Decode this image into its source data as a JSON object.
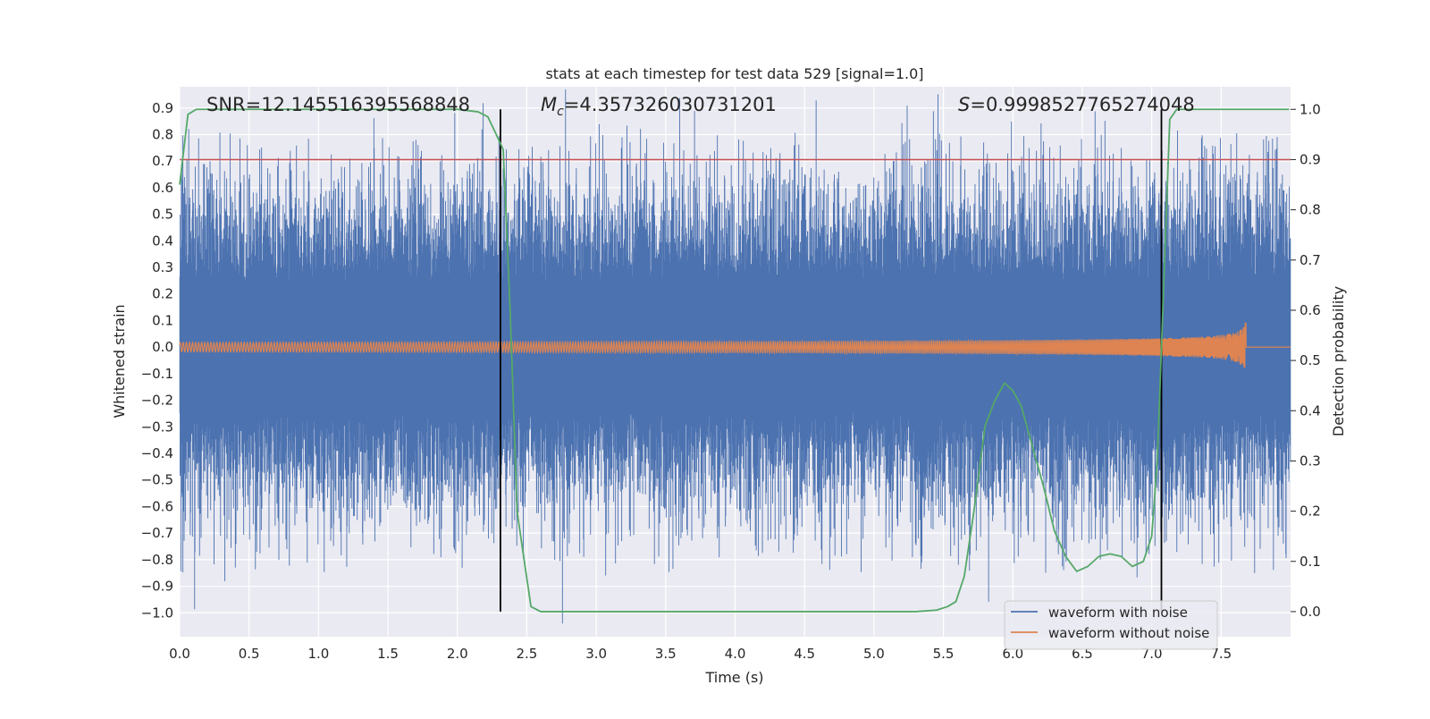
{
  "chart_data": {
    "type": "line",
    "title": "stats at each timestep for test data 529 [signal=1.0]",
    "xlabel": "Time (s)",
    "ylabel": "Whitened strain",
    "y2label": "Detection probability",
    "xlim": [
      0.0,
      8.0
    ],
    "ylim": [
      -1.09,
      0.98
    ],
    "y2lim": [
      -0.05,
      1.045
    ],
    "x_ticks": [
      "0.0",
      "0.5",
      "1.0",
      "1.5",
      "2.0",
      "2.5",
      "3.0",
      "3.5",
      "4.0",
      "4.5",
      "5.0",
      "5.5",
      "6.0",
      "6.5",
      "7.0",
      "7.5"
    ],
    "y_ticks": [
      "0.9",
      "0.8",
      "0.7",
      "0.6",
      "0.5",
      "0.4",
      "0.3",
      "0.2",
      "0.1",
      "0.0",
      "−0.1",
      "−0.2",
      "−0.3",
      "−0.4",
      "−0.5",
      "−0.6",
      "−0.7",
      "−0.8",
      "−0.9",
      "−1.0"
    ],
    "y2_ticks": [
      "1.0",
      "0.9",
      "0.8",
      "0.7",
      "0.6",
      "0.5",
      "0.4",
      "0.3",
      "0.2",
      "0.1",
      "0.0"
    ],
    "annotations": {
      "snr": "SNR=12.145516395568848",
      "mc_symbol": "M",
      "mc_sub": "c",
      "mc_value": "=4.357326030731201",
      "s_symbol": "S",
      "s_value": "=0.9998527765274048"
    },
    "threshold": 0.9,
    "vlines": [
      2.31,
      7.07
    ],
    "grid": true,
    "legend_position": "lower right",
    "series": [
      {
        "name": "waveform with noise",
        "color": "#4c72b0",
        "axis": "left",
        "kind": "noise",
        "typical_amplitude": 0.45,
        "peak_amplitude": 0.88
      },
      {
        "name": "waveform without noise",
        "color": "#dd8452",
        "axis": "left",
        "kind": "chirp",
        "start_amplitude": 0.018,
        "peak_amplitude": 0.24,
        "merger_time": 7.68
      },
      {
        "name": "Detection probability",
        "color": "#55a868",
        "axis": "right",
        "x": [
          0.0,
          0.06,
          0.12,
          0.5,
          1.0,
          1.5,
          2.0,
          2.15,
          2.22,
          2.28,
          2.33,
          2.38,
          2.43,
          2.49,
          2.53,
          2.6,
          3.0,
          3.5,
          4.0,
          4.5,
          5.0,
          5.3,
          5.45,
          5.53,
          5.59,
          5.65,
          5.72,
          5.8,
          5.87,
          5.94,
          6.0,
          6.06,
          6.14,
          6.22,
          6.3,
          6.38,
          6.46,
          6.54,
          6.62,
          6.7,
          6.78,
          6.86,
          6.94,
          7.0,
          7.04,
          7.08,
          7.13,
          7.18,
          7.5,
          7.99
        ],
        "y": [
          0.85,
          0.99,
          1.0,
          1.0,
          1.0,
          1.0,
          1.0,
          0.995,
          0.985,
          0.95,
          0.92,
          0.6,
          0.2,
          0.085,
          0.01,
          0.0,
          0.0,
          0.0,
          0.0,
          0.0,
          0.0,
          0.0,
          0.003,
          0.01,
          0.02,
          0.07,
          0.2,
          0.37,
          0.42,
          0.455,
          0.44,
          0.41,
          0.33,
          0.25,
          0.16,
          0.11,
          0.08,
          0.09,
          0.11,
          0.115,
          0.11,
          0.09,
          0.1,
          0.15,
          0.3,
          0.6,
          0.98,
          1.0,
          1.0,
          1.0
        ]
      }
    ]
  }
}
